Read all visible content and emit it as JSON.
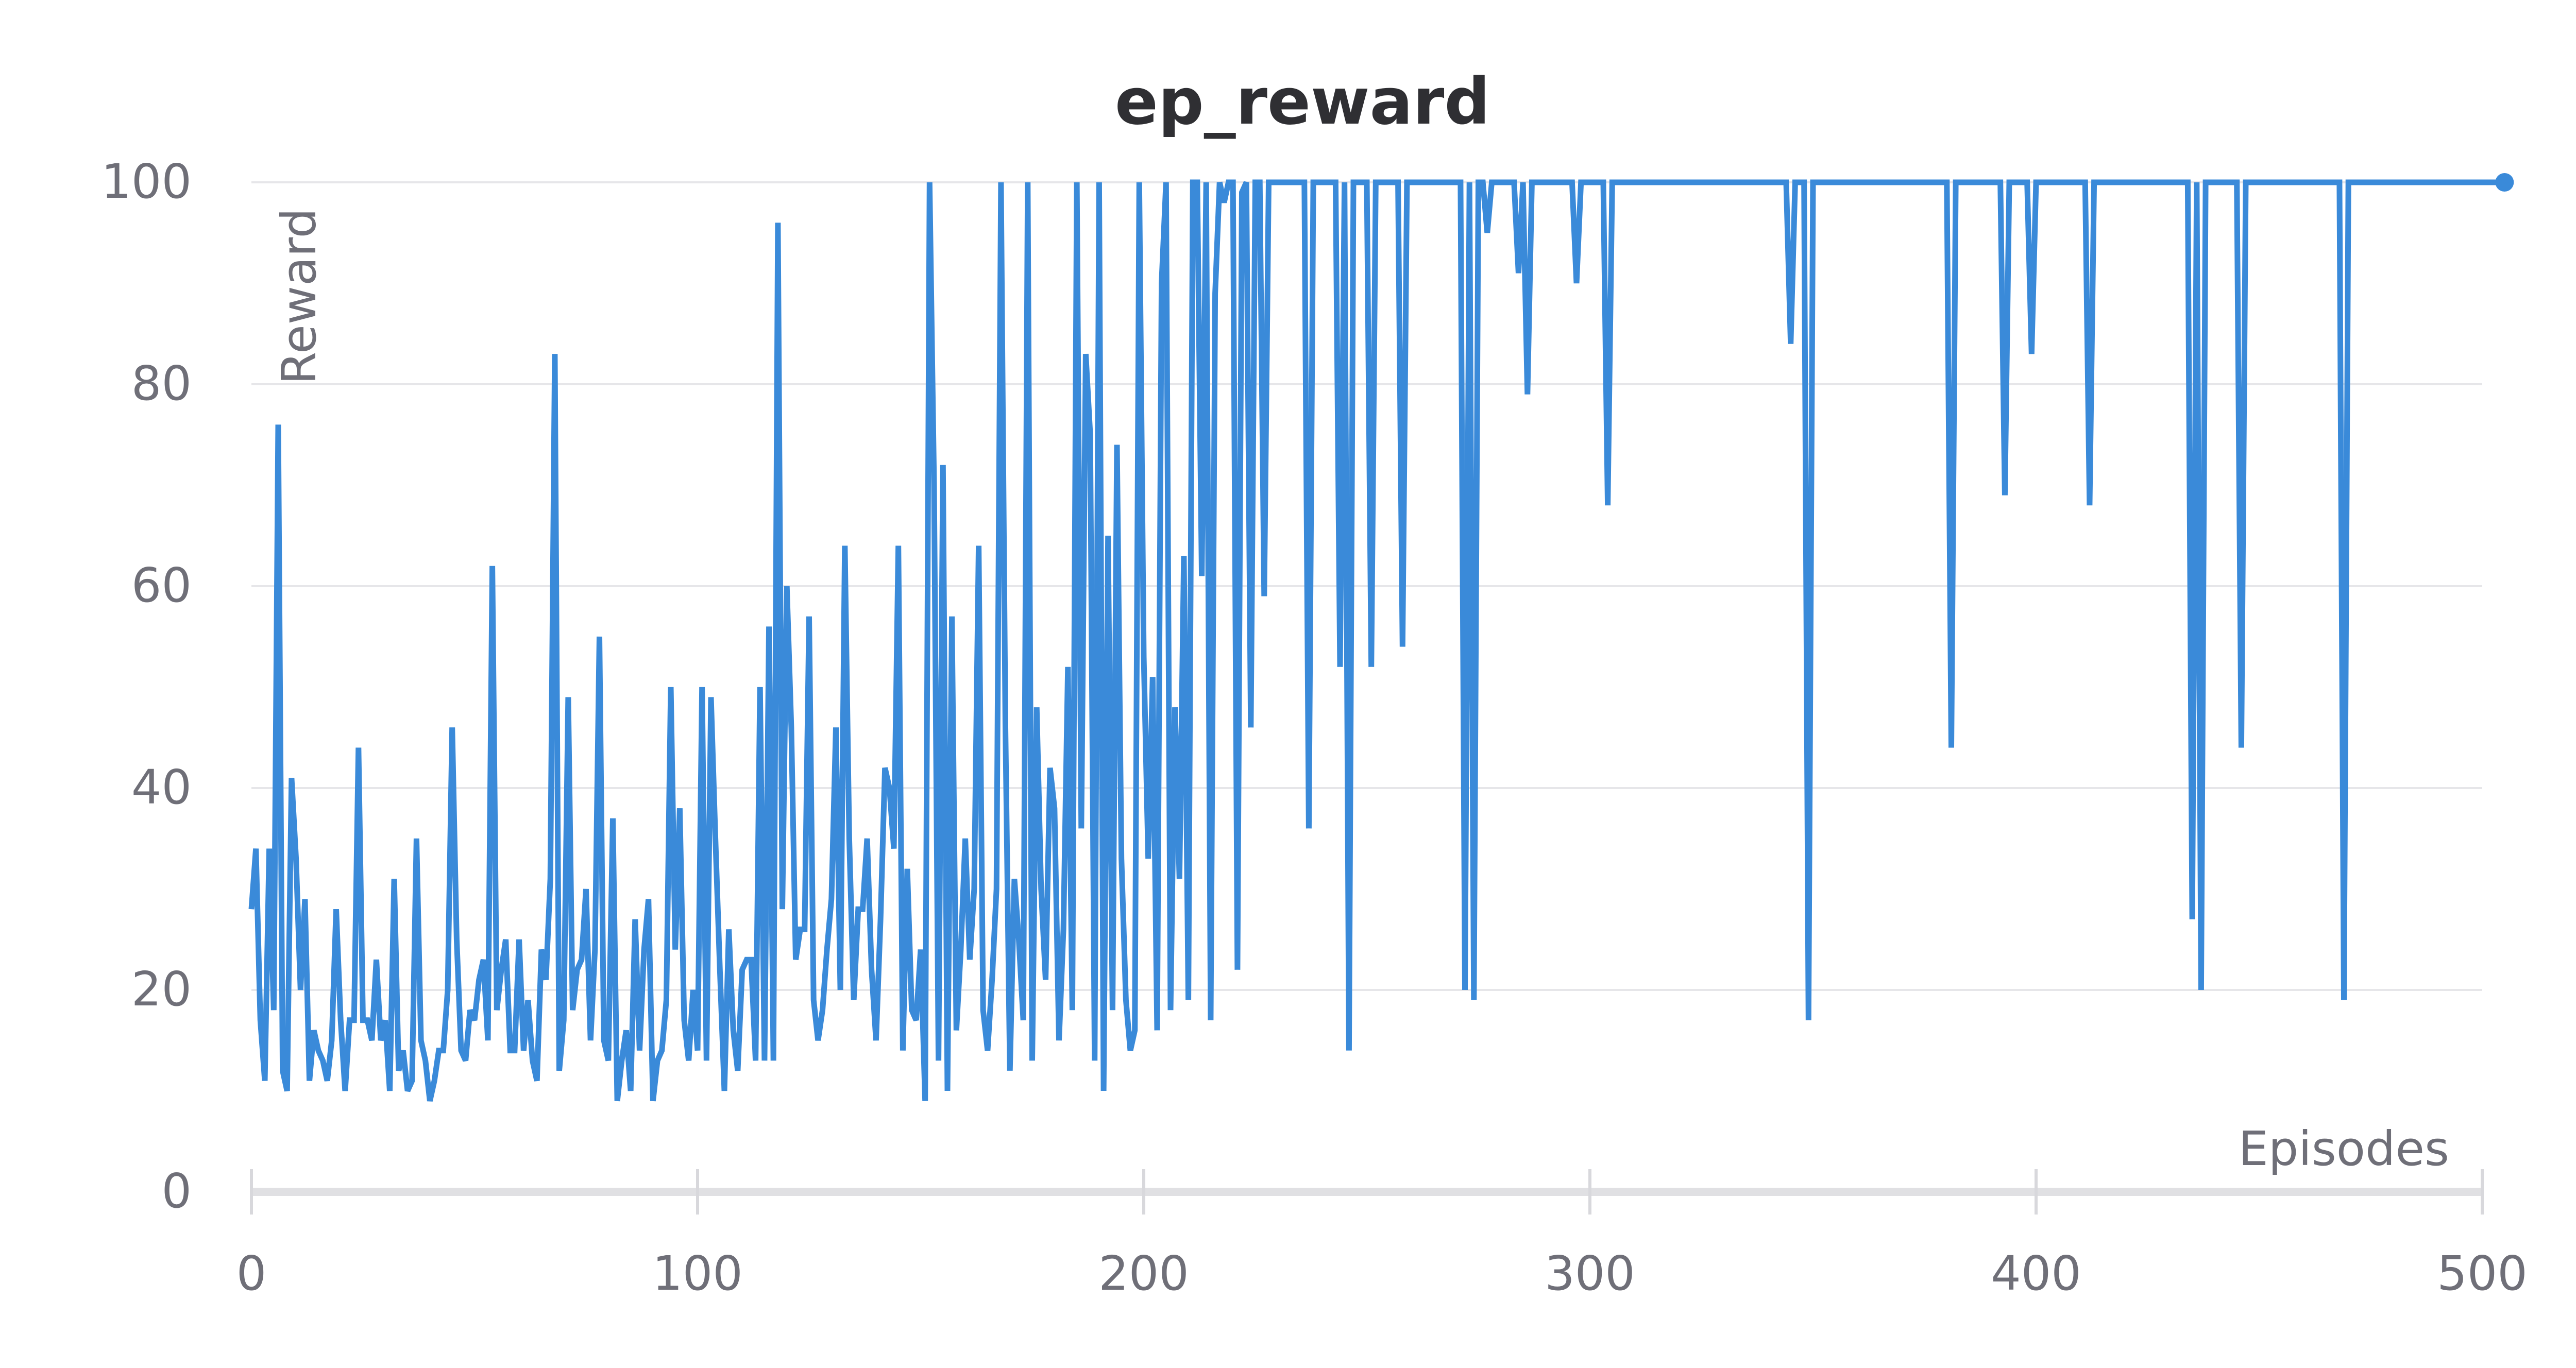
{
  "chart_data": {
    "type": "line",
    "title": "ep_reward",
    "xlabel": "Episodes",
    "ylabel": "Reward",
    "xlim": [
      0,
      500
    ],
    "ylim": [
      0,
      100
    ],
    "x_ticks": [
      "0",
      "100",
      "200",
      "300",
      "400",
      "500"
    ],
    "y_ticks": [
      "0",
      "20",
      "40",
      "60",
      "80",
      "100"
    ],
    "grid": "horizontal",
    "series": [
      {
        "color": "#3a8ad9",
        "x_start": 0,
        "x_step": 1,
        "values": [
          28,
          34,
          17,
          11,
          34,
          18,
          76,
          12,
          10,
          41,
          33,
          20,
          29,
          11,
          16,
          14,
          13,
          11,
          15,
          28,
          17,
          10,
          17,
          17,
          44,
          17,
          17,
          15,
          23,
          15,
          17,
          10,
          31,
          12,
          14,
          10,
          11,
          35,
          15,
          13,
          9,
          11,
          14,
          14,
          20,
          46,
          25,
          14,
          13,
          18,
          17,
          21,
          23,
          15,
          62,
          18,
          22,
          25,
          14,
          14,
          25,
          14,
          19,
          13,
          11,
          24,
          21,
          31,
          83,
          12,
          17,
          49,
          18,
          22,
          23,
          30,
          15,
          24,
          55,
          15,
          13,
          37,
          9,
          13,
          16,
          10,
          27,
          14,
          24,
          29,
          9,
          13,
          14,
          19,
          50,
          24,
          38,
          17,
          13,
          20,
          14,
          50,
          13,
          49,
          35,
          22,
          10,
          26,
          16,
          12,
          22,
          23,
          23,
          13,
          50,
          13,
          56,
          13,
          96,
          28,
          60,
          46,
          23,
          26,
          26,
          57,
          19,
          15,
          18,
          24,
          29,
          46,
          20,
          64,
          35,
          19,
          28,
          28,
          35,
          22,
          15,
          27,
          42,
          40,
          34,
          64,
          14,
          32,
          18,
          17,
          24,
          9,
          100,
          70,
          13,
          72,
          10,
          57,
          16,
          24,
          35,
          23,
          30,
          64,
          18,
          14,
          21,
          30,
          100,
          46,
          12,
          31,
          25,
          17,
          100,
          13,
          48,
          30,
          21,
          42,
          38,
          15,
          26,
          52,
          18,
          100,
          36,
          83,
          75,
          13,
          100,
          10,
          65,
          18,
          74,
          33,
          19,
          14,
          16,
          100,
          53,
          33,
          51,
          16,
          90,
          100,
          18,
          48,
          31,
          63,
          19,
          100,
          100,
          61,
          100,
          17,
          89,
          100,
          98,
          100,
          100,
          22,
          99,
          100,
          46,
          100,
          100,
          59,
          100,
          100,
          100,
          100,
          100,
          100,
          100,
          100,
          100,
          36,
          100,
          100,
          100,
          100,
          100,
          100,
          52,
          100,
          14,
          100,
          100,
          100,
          100,
          52,
          100,
          100,
          100,
          100,
          100,
          100,
          54,
          100,
          100,
          100,
          100,
          100,
          100,
          100,
          100,
          100,
          100,
          100,
          100,
          100,
          20,
          100,
          19,
          100,
          100,
          95,
          100,
          100,
          100,
          100,
          100,
          100,
          91,
          100,
          79,
          100,
          100,
          100,
          100,
          100,
          100,
          100,
          100,
          100,
          100,
          90,
          100,
          100,
          100,
          100,
          100,
          100,
          68,
          100,
          100,
          100,
          100,
          100,
          100,
          100,
          100,
          100,
          100,
          100,
          100,
          100,
          100,
          100,
          100,
          100,
          100,
          100,
          100,
          100,
          100,
          100,
          100,
          100,
          100,
          100,
          100,
          100,
          100,
          100,
          100,
          100,
          100,
          100,
          100,
          100,
          100,
          100,
          100,
          84,
          100,
          100,
          100,
          17,
          100,
          100,
          100,
          100,
          100,
          100,
          100,
          100,
          100,
          100,
          100,
          100,
          100,
          100,
          100,
          100,
          100,
          100,
          100,
          100,
          100,
          100,
          100,
          100,
          100,
          100,
          100,
          100,
          100,
          100,
          100,
          44,
          100,
          100,
          100,
          100,
          100,
          100,
          100,
          100,
          100,
          100,
          100,
          69,
          100,
          100,
          100,
          100,
          100,
          83,
          100,
          100,
          100,
          100,
          100,
          100,
          100,
          100,
          100,
          100,
          100,
          100,
          68,
          100,
          100,
          100,
          100,
          100,
          100,
          100,
          100,
          100,
          100,
          100,
          100,
          100,
          100,
          100,
          100,
          100,
          100,
          100,
          100,
          100,
          100,
          27,
          100,
          20,
          100,
          100,
          100,
          100,
          100,
          100,
          100,
          100,
          44,
          100,
          100,
          100,
          100,
          100,
          100,
          100,
          100,
          100,
          100,
          100,
          100,
          100,
          100,
          100,
          100,
          100,
          100,
          100,
          100,
          100,
          100,
          19,
          100,
          100,
          100,
          100,
          100,
          100,
          100,
          100,
          100,
          100,
          100,
          100,
          100,
          100,
          100,
          100,
          100,
          100,
          100,
          100,
          100,
          100,
          100,
          100,
          100,
          100,
          100,
          100,
          100,
          100,
          100,
          100,
          100,
          100,
          100,
          100
        ]
      }
    ]
  }
}
